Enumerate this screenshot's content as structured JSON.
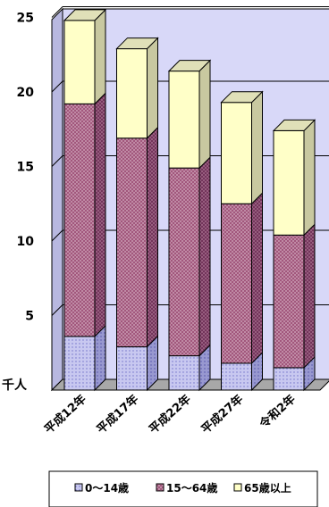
{
  "chart_data": {
    "type": "bar",
    "stacked": true,
    "three_d": true,
    "categories": [
      "平成12年",
      "平成17年",
      "平成22年",
      "平成27年",
      "令和2年"
    ],
    "series": [
      {
        "name": "0～14歳",
        "values": [
          3.6,
          2.9,
          2.3,
          1.8,
          1.5
        ],
        "color": "#c8c8f0",
        "pattern": "dots"
      },
      {
        "name": "15～64歳",
        "values": [
          15.6,
          14.0,
          12.6,
          10.7,
          8.9
        ],
        "color": "#c898b0",
        "pattern": "crosshatch"
      },
      {
        "name": "65歳以上",
        "values": [
          5.6,
          6.0,
          6.5,
          6.8,
          7.0
        ],
        "color": "#ffffc8",
        "pattern": "none"
      }
    ],
    "y_ticks": [
      "25",
      "20",
      "15",
      "10",
      "5"
    ],
    "y_unit": "千人",
    "ylim": [
      0,
      25
    ],
    "legend_position": "bottom",
    "grid": true,
    "wall_color": "#d8d8f8",
    "floor_color": "#a8a8a8"
  }
}
